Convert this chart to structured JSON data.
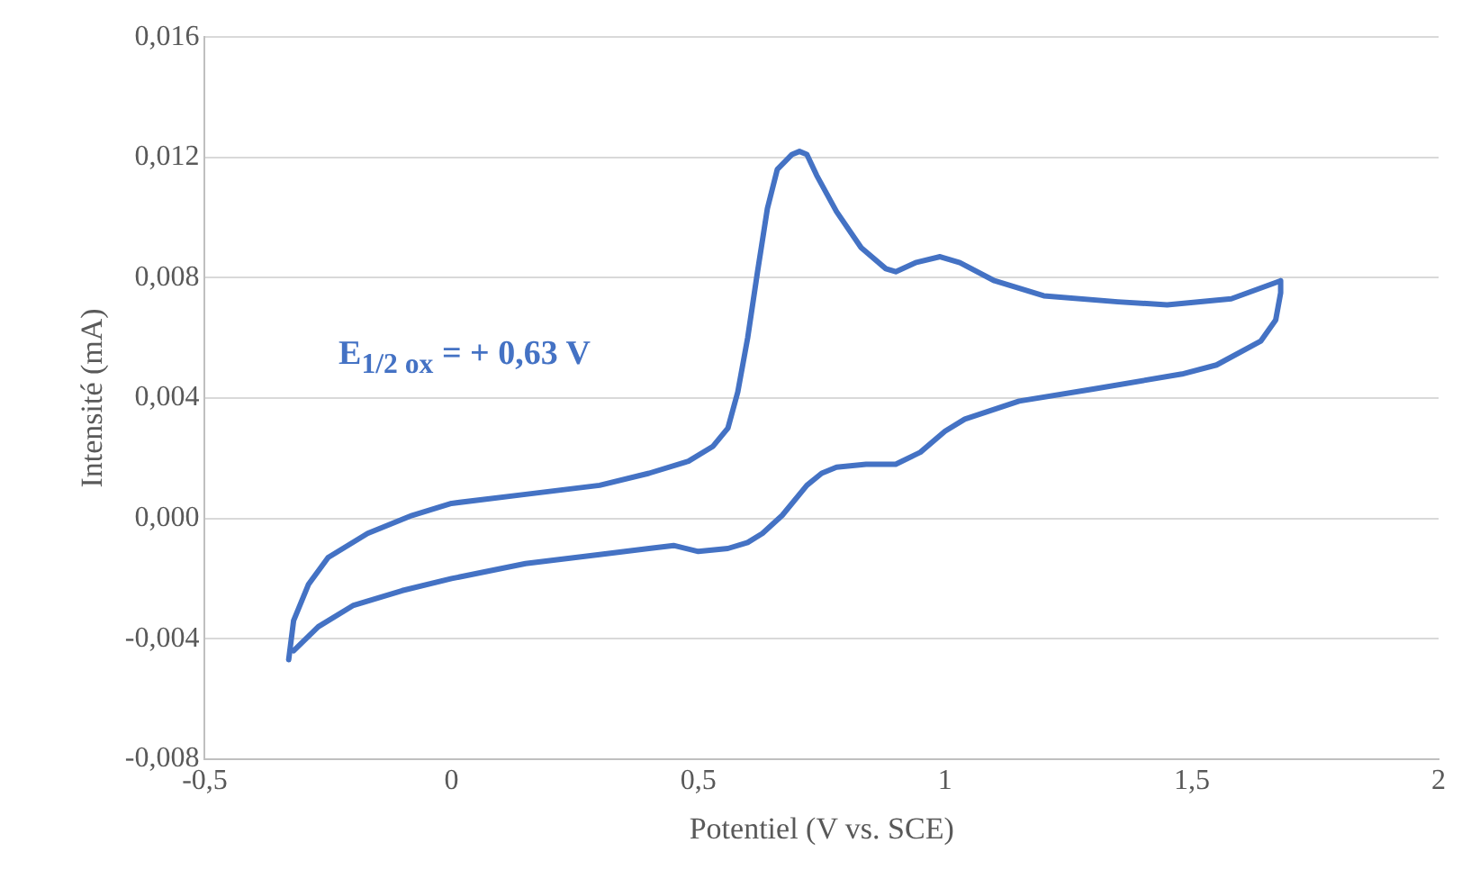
{
  "chart_data": {
    "type": "line",
    "xlabel": "Potentiel (V vs. SCE)",
    "ylabel": "Intensité (mA)",
    "annotations": [
      "E$_{1/2 ox}$ = + 0,63 V"
    ],
    "xlim": [
      -0.5,
      2
    ],
    "xticks": [
      {
        "value": -0.5,
        "label": "-0,5"
      },
      0,
      {
        "value": 0.5,
        "label": "0,5"
      },
      1,
      {
        "value": 1.5,
        "label": "1,5"
      },
      2
    ],
    "ylim": [
      -0.008,
      0.016
    ],
    "yticks": [
      {
        "value": -0.008,
        "label": "-0,008"
      },
      {
        "value": -0.004,
        "label": "-0,004"
      },
      {
        "value": 0,
        "label": "0,000"
      },
      {
        "value": 0.004,
        "label": "0,004"
      },
      {
        "value": 0.008,
        "label": "0,008"
      },
      {
        "value": 0.012,
        "label": "0,012"
      },
      {
        "value": 0.016,
        "label": "0,016"
      }
    ],
    "grid": "y",
    "marker": "none",
    "line_style": "solid",
    "series": [
      {
        "color": "#4472c4",
        "x": [
          -0.33,
          -0.32,
          -0.29,
          -0.25,
          -0.17,
          -0.08,
          0,
          0.15,
          0.3,
          0.4,
          0.48,
          0.53,
          0.56,
          0.58,
          0.6,
          0.62,
          0.64,
          0.66,
          0.69,
          0.705,
          0.72,
          0.74,
          0.78,
          0.83,
          0.88,
          0.9,
          0.94,
          0.99,
          1.03,
          1.1,
          1.2,
          1.35,
          1.45,
          1.58,
          1.68,
          1.68,
          1.67,
          1.64,
          1.55,
          1.48,
          1.3,
          1.15,
          1.04,
          1.0,
          0.95,
          0.9,
          0.84,
          0.78,
          0.75,
          0.72,
          0.67,
          0.63,
          0.6,
          0.56,
          0.5,
          0.45,
          0.4,
          0.3,
          0.15,
          0,
          -0.1,
          -0.2,
          -0.27,
          -0.32
        ],
        "values": [
          -0.0047,
          -0.0034,
          -0.0022,
          -0.0013,
          -0.0005,
          0.0001,
          0.0005,
          0.0008,
          0.0011,
          0.0015,
          0.0019,
          0.0024,
          0.003,
          0.0042,
          0.006,
          0.0082,
          0.0103,
          0.0116,
          0.0121,
          0.0122,
          0.0121,
          0.0114,
          0.0102,
          0.009,
          0.0083,
          0.0082,
          0.0085,
          0.0087,
          0.0085,
          0.0079,
          0.0074,
          0.0072,
          0.0071,
          0.0073,
          0.0079,
          0.0075,
          0.0066,
          0.0059,
          0.0051,
          0.0048,
          0.0043,
          0.0039,
          0.0033,
          0.0029,
          0.0022,
          0.0018,
          0.0018,
          0.0017,
          0.0015,
          0.0011,
          0.0001,
          -0.0005,
          -0.0008,
          -0.001,
          -0.0011,
          -0.0009,
          -0.001,
          -0.0012,
          -0.0015,
          -0.002,
          -0.0024,
          -0.0029,
          -0.0036,
          -0.0044
        ]
      }
    ]
  }
}
